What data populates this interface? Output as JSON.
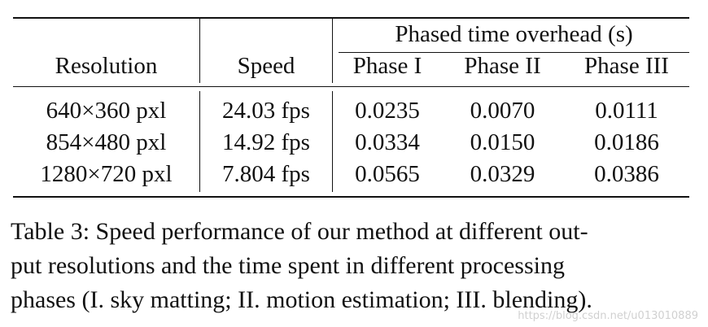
{
  "table": {
    "group_header": "Phased time overhead (s)",
    "columns": [
      "Resolution",
      "Speed",
      "Phase I",
      "Phase II",
      "Phase III"
    ],
    "rows": [
      {
        "resolution": "640×360 pxl",
        "speed": "24.03 fps",
        "phase1": "0.0235",
        "phase2": "0.0070",
        "phase3": "0.0111"
      },
      {
        "resolution": "854×480 pxl",
        "speed": "14.92 fps",
        "phase1": "0.0334",
        "phase2": "0.0150",
        "phase3": "0.0186"
      },
      {
        "resolution": "1280×720 pxl",
        "speed": "7.804 fps",
        "phase1": "0.0565",
        "phase2": "0.0329",
        "phase3": "0.0386"
      }
    ]
  },
  "caption": {
    "lines": [
      "Table 3: Speed performance of our method at different out-",
      "put resolutions and the time spent in different processing",
      "phases (I. sky matting; II. motion estimation; III. blending)."
    ]
  },
  "watermark": "https://blog.csdn.net/u013010889"
}
